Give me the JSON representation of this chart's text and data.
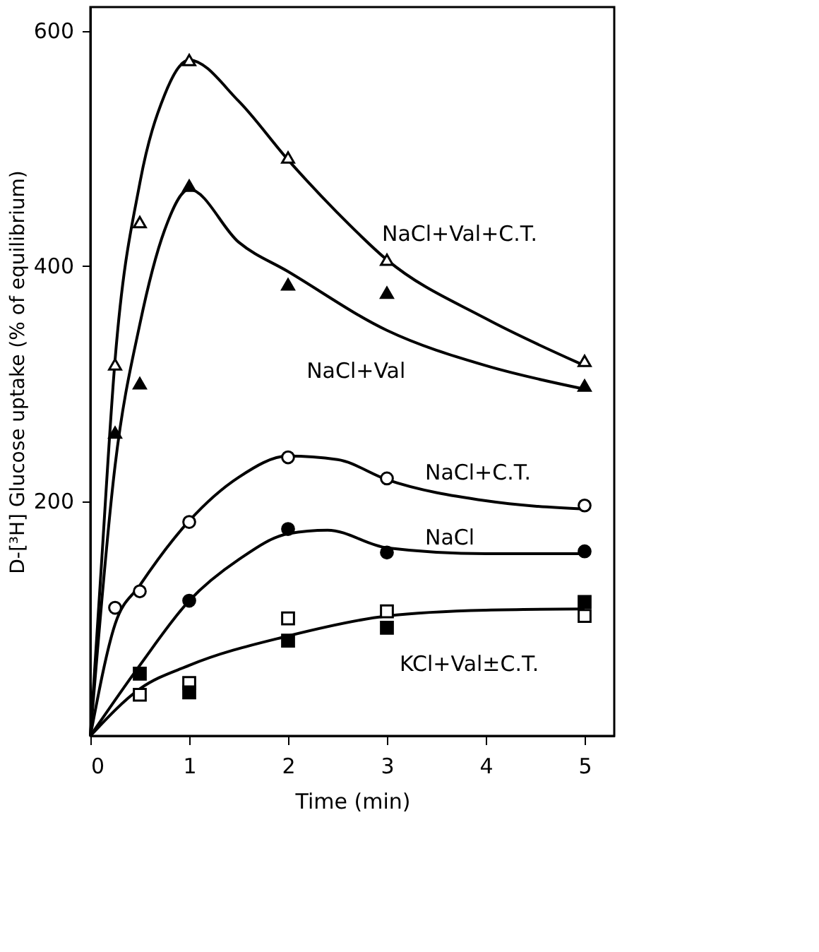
{
  "chart_data": {
    "type": "line",
    "xlabel": "Time (min)",
    "ylabel": "D-[³H] Glucose uptake (% of equilibrium)",
    "xlim": [
      0,
      5.3
    ],
    "ylim": [
      0,
      620
    ],
    "xticks": [
      0,
      1,
      2,
      3,
      4,
      5
    ],
    "yticks": [
      200,
      400,
      600
    ],
    "grid": false,
    "line_style": "solid",
    "series": [
      {
        "color": "#000000",
        "x": [
          0,
          0.1,
          0.25,
          0.5,
          0.75,
          1,
          1.5,
          2,
          2.5,
          3,
          4,
          5
        ],
        "values": [
          0,
          130,
          320,
          470,
          545,
          575,
          540,
          490,
          445,
          405,
          355,
          315
        ]
      },
      {
        "color": "#000000",
        "x": [
          0,
          0.25,
          0.5,
          0.75,
          1,
          1.5,
          2,
          3,
          4,
          5
        ],
        "values": [
          0,
          230,
          350,
          430,
          465,
          420,
          395,
          345,
          315,
          295
        ]
      },
      {
        "color": "#000000",
        "x": [
          0,
          0.25,
          0.5,
          1,
          1.5,
          2,
          2.5,
          3,
          4,
          5
        ],
        "values": [
          0,
          95,
          128,
          183,
          220,
          238,
          235,
          218,
          200,
          193
        ]
      },
      {
        "color": "#000000",
        "x": [
          0,
          0.5,
          1,
          1.5,
          2,
          2.4,
          3,
          4,
          5
        ],
        "values": [
          0,
          60,
          115,
          150,
          172,
          175,
          160,
          155,
          155
        ]
      },
      {
        "color": "#000000",
        "x": [
          0,
          0.5,
          1,
          2,
          3,
          4,
          5
        ],
        "values": [
          0,
          40,
          60,
          85,
          102,
          107,
          108
        ]
      },
      {
        "type": "scatter",
        "marker": "triangle",
        "color": "#ffffff",
        "x": [
          0.25,
          0.5,
          1,
          2,
          3,
          5
        ],
        "values": [
          316,
          437,
          575,
          492,
          405,
          319
        ]
      },
      {
        "type": "scatter",
        "marker": "triangle",
        "color": "#000000",
        "x": [
          0.25,
          0.5,
          1,
          2,
          3,
          5
        ],
        "values": [
          258,
          300,
          468,
          384,
          377,
          298
        ]
      },
      {
        "type": "scatter",
        "marker": "circle",
        "color": "#ffffff",
        "x": [
          0.25,
          0.5,
          1,
          2,
          3,
          5
        ],
        "values": [
          109,
          123,
          182,
          237,
          219,
          196
        ]
      },
      {
        "type": "scatter",
        "marker": "circle",
        "color": "#000000",
        "x": [
          1,
          2,
          3,
          5
        ],
        "values": [
          115,
          176,
          156,
          157
        ]
      },
      {
        "type": "scatter",
        "marker": "square",
        "color": "#ffffff",
        "x": [
          0.5,
          1,
          2,
          3,
          5
        ],
        "values": [
          35,
          45,
          100,
          106,
          102
        ]
      },
      {
        "type": "scatter",
        "marker": "square",
        "color": "#000000",
        "x": [
          0.5,
          1,
          2,
          3,
          5
        ],
        "values": [
          53,
          37,
          81,
          92,
          114
        ]
      }
    ],
    "annotations": [
      {
        "text": "NaCl+Val+C.T.",
        "x": 2.75,
        "y": 425
      },
      {
        "text": "NaCl+Val",
        "x": 2.83,
        "y": 356
      },
      {
        "text": "NaCl+C.T.",
        "x": 3.3,
        "y": 212
      },
      {
        "text": "NaCl",
        "x": 3.3,
        "y": 157
      },
      {
        "text": "KCl+Val±C.T.",
        "x": 2.7,
        "y": 95
      }
    ]
  }
}
